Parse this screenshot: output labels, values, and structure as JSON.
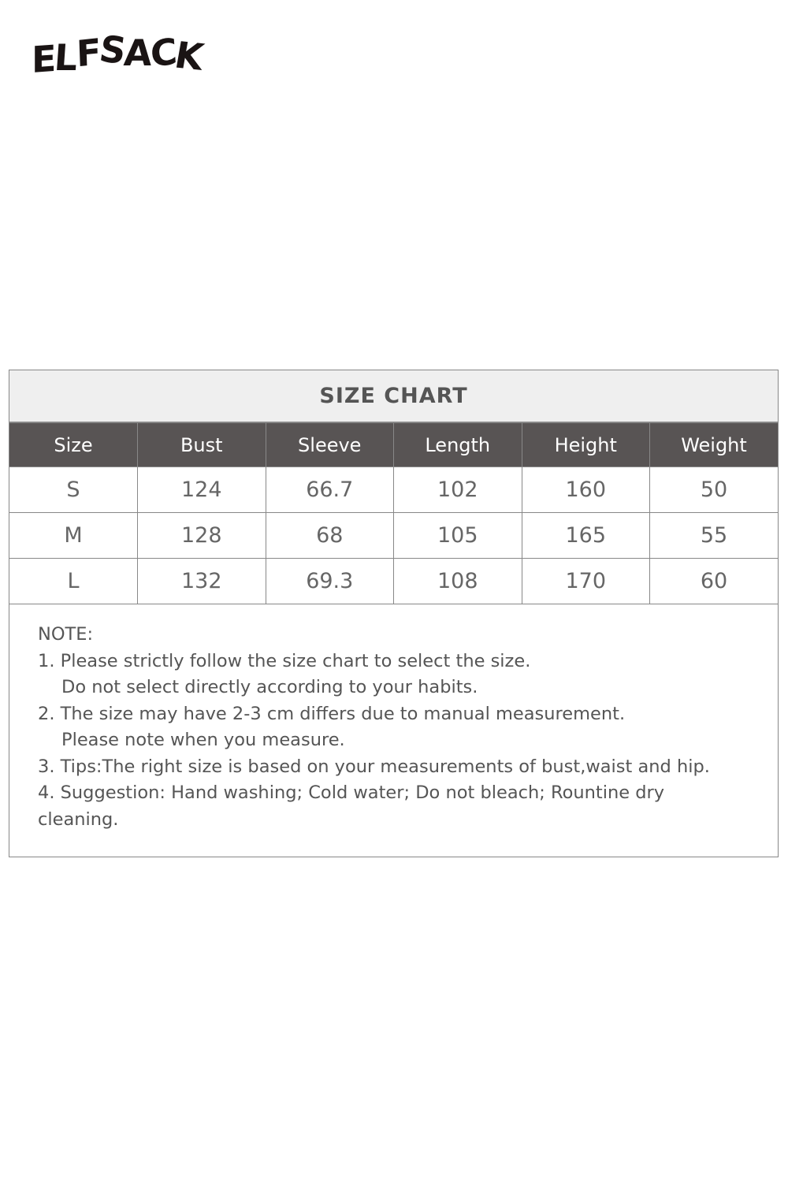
{
  "logo": {
    "text": "ELFSACK"
  },
  "size_chart": {
    "title": "SIZE CHART",
    "columns": [
      "Size",
      "Bust",
      "Sleeve",
      "Length",
      "Height",
      "Weight"
    ],
    "rows": [
      [
        "S",
        "124",
        "66.7",
        "102",
        "160",
        "50"
      ],
      [
        "M",
        "128",
        "68",
        "105",
        "165",
        "55"
      ],
      [
        "L",
        "132",
        "69.3",
        "108",
        "170",
        "60"
      ]
    ],
    "header_color": "#585454",
    "title_bg_color": "#efefef"
  },
  "notes": {
    "heading": "NOTE:",
    "lines": [
      "1. Please strictly follow the size chart to select the size.",
      "Do not select directly according to your habits.",
      "2. The size may have 2-3 cm differs due to manual measurement.",
      "Please note when you measure.",
      "3. Tips:The right size is based on your measurements of bust,waist and hip.",
      "4. Suggestion: Hand washing; Cold water; Do not bleach; Rountine dry cleaning."
    ]
  }
}
